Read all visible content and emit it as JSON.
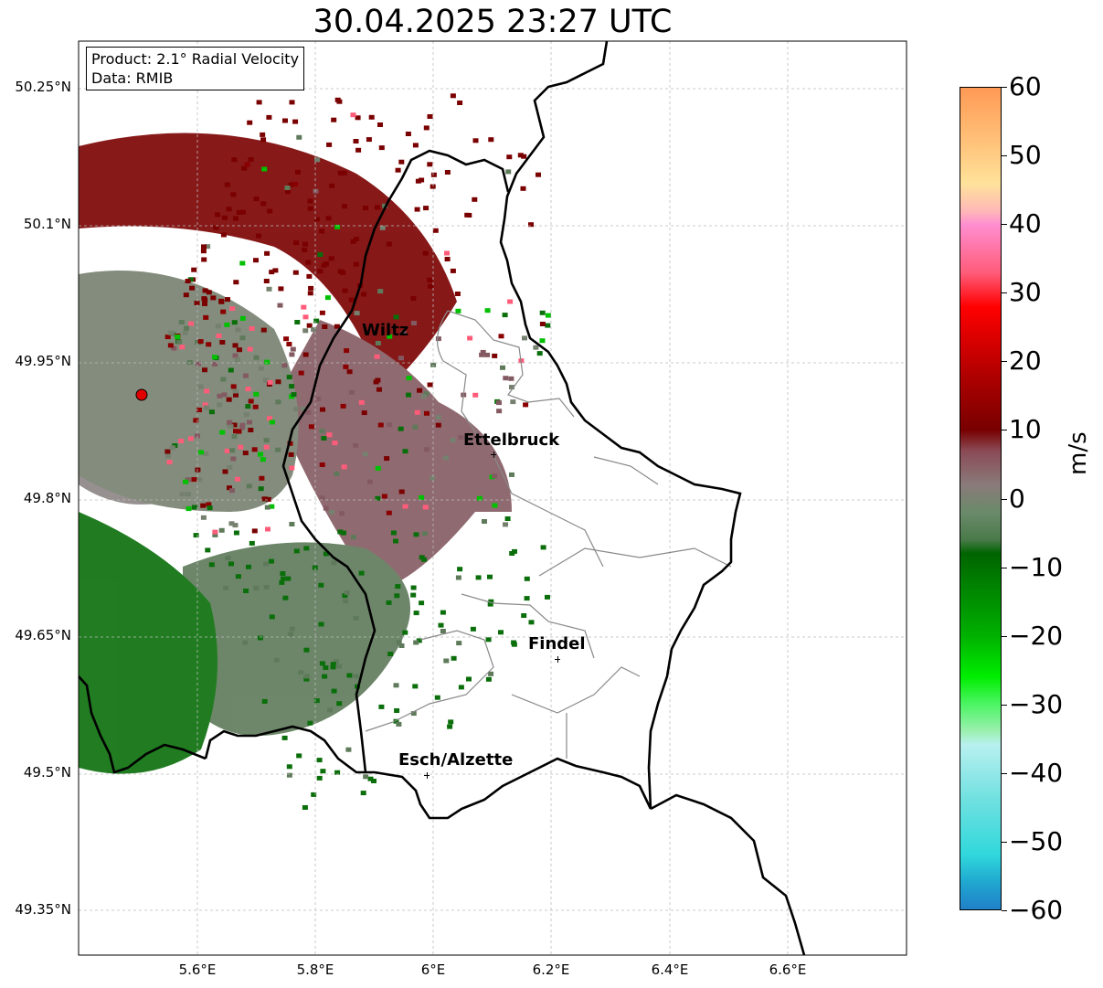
{
  "title": "30.04.2025 23:27 UTC",
  "info_box": {
    "product": "Product: 2.1° Radial Velocity",
    "source": "Data: RMIB"
  },
  "lat_ticks": [
    "50.25°N",
    "50.1°N",
    "49.95°N",
    "49.8°N",
    "49.65°N",
    "49.5°N",
    "49.35°N"
  ],
  "lon_ticks": [
    "5.6°E",
    "5.8°E",
    "6°E",
    "6.2°E",
    "6.4°E",
    "6.6°E"
  ],
  "cities": [
    {
      "name": "Wiltz"
    },
    {
      "name": "Ettelbruck"
    },
    {
      "name": "Findel"
    },
    {
      "name": "Esch/Alzette"
    }
  ],
  "colorbar": {
    "label": "m/s",
    "ticks": [
      "60",
      "50",
      "40",
      "30",
      "20",
      "10",
      "0",
      "−10",
      "−20",
      "−30",
      "−40",
      "−50",
      "−60"
    ],
    "range": [
      -60,
      60
    ],
    "stops": [
      {
        "value": 60,
        "color": "#ff9a55"
      },
      {
        "value": 52,
        "color": "#ffc27a"
      },
      {
        "value": 46,
        "color": "#ffe29a"
      },
      {
        "value": 42,
        "color": "#ffb8b8"
      },
      {
        "value": 40,
        "color": "#ff8ed0"
      },
      {
        "value": 33,
        "color": "#ff5c7a"
      },
      {
        "value": 28,
        "color": "#ff0000"
      },
      {
        "value": 18,
        "color": "#b00000"
      },
      {
        "value": 10,
        "color": "#780000"
      },
      {
        "value": 7,
        "color": "#8a4a55"
      },
      {
        "value": 2,
        "color": "#8a7a7a"
      },
      {
        "value": -2,
        "color": "#6a8a6a"
      },
      {
        "value": -6,
        "color": "#4a7a4a"
      },
      {
        "value": -8,
        "color": "#006400"
      },
      {
        "value": -20,
        "color": "#00b000"
      },
      {
        "value": -26,
        "color": "#00ee00"
      },
      {
        "value": -30,
        "color": "#4cf464"
      },
      {
        "value": -34,
        "color": "#9cf0b0"
      },
      {
        "value": -36,
        "color": "#b8f0f0"
      },
      {
        "value": -44,
        "color": "#70e0e0"
      },
      {
        "value": -52,
        "color": "#30d8dc"
      },
      {
        "value": -56,
        "color": "#20a8d0"
      },
      {
        "value": -60,
        "color": "#2080c8"
      }
    ]
  },
  "radar_site_color": "#e00000",
  "border_color": "#000000",
  "canton_color": "#888888"
}
